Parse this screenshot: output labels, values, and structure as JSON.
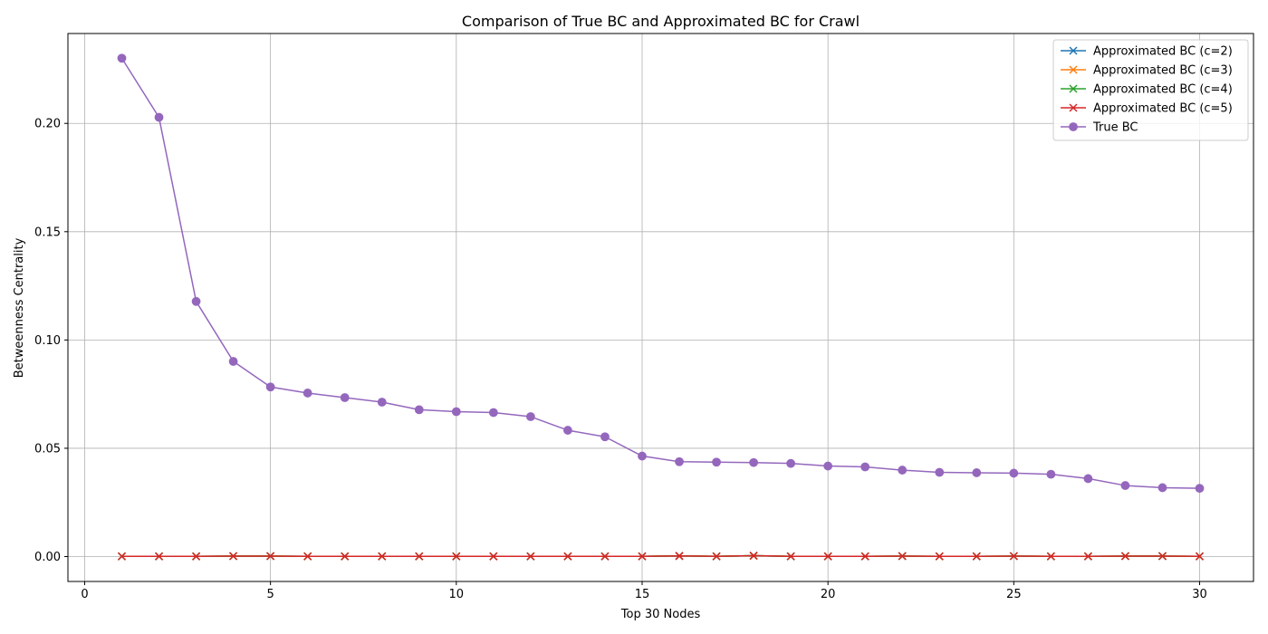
{
  "chart_data": {
    "type": "line",
    "title": "Comparison of True BC and Approximated BC for Crawl",
    "xlabel": "Top 30 Nodes",
    "ylabel": "Betweenness Centrality",
    "xlim": [
      -0.45,
      31.45
    ],
    "ylim": [
      -0.0115,
      0.2415
    ],
    "xticks": [
      0,
      5,
      10,
      15,
      20,
      25,
      30
    ],
    "yticks": [
      0.0,
      0.05,
      0.1,
      0.15,
      0.2
    ],
    "ytick_labels": [
      "0.00",
      "0.05",
      "0.10",
      "0.15",
      "0.20"
    ],
    "grid": true,
    "legend_position": "top-right",
    "x": [
      1,
      2,
      3,
      4,
      5,
      6,
      7,
      8,
      9,
      10,
      11,
      12,
      13,
      14,
      15,
      16,
      17,
      18,
      19,
      20,
      21,
      22,
      23,
      24,
      25,
      26,
      27,
      28,
      29,
      30
    ],
    "series": [
      {
        "name": "Approximated BC (c=2)",
        "color": "#1f77b4",
        "marker": "x",
        "values": [
          0.0001,
          0.0001,
          0.0001,
          0.0002,
          0.0002,
          0.0001,
          0.0001,
          0.0001,
          0.0001,
          0.0001,
          0.0001,
          0.0001,
          0.0001,
          0.0001,
          0.0001,
          0.0003,
          0.0001,
          0.0004,
          0.0001,
          0.0001,
          0.0001,
          0.0002,
          0.0001,
          0.0001,
          0.0002,
          0.0001,
          0.0001,
          0.0002,
          0.0002,
          0.0001
        ]
      },
      {
        "name": "Approximated BC (c=3)",
        "color": "#ff7f0e",
        "marker": "x",
        "values": [
          0.0001,
          0.0001,
          0.0001,
          0.0002,
          0.0002,
          0.0001,
          0.0001,
          0.0001,
          0.0001,
          0.0001,
          0.0001,
          0.0001,
          0.0001,
          0.0001,
          0.0001,
          0.0003,
          0.0001,
          0.0004,
          0.0001,
          0.0001,
          0.0001,
          0.0002,
          0.0001,
          0.0001,
          0.0002,
          0.0001,
          0.0001,
          0.0002,
          0.0002,
          0.0001
        ]
      },
      {
        "name": "Approximated BC (c=4)",
        "color": "#2ca02c",
        "marker": "x",
        "values": [
          0.0001,
          0.0001,
          0.0001,
          0.0002,
          0.0002,
          0.0001,
          0.0001,
          0.0001,
          0.0001,
          0.0001,
          0.0001,
          0.0001,
          0.0001,
          0.0001,
          0.0001,
          0.0003,
          0.0001,
          0.0004,
          0.0001,
          0.0001,
          0.0001,
          0.0002,
          0.0001,
          0.0001,
          0.0002,
          0.0001,
          0.0001,
          0.0002,
          0.0002,
          0.0001
        ]
      },
      {
        "name": "Approximated BC (c=5)",
        "color": "#d62728",
        "marker": "x",
        "values": [
          0.0001,
          0.0001,
          0.0001,
          0.0002,
          0.0002,
          0.0001,
          0.0001,
          0.0001,
          0.0001,
          0.0001,
          0.0001,
          0.0001,
          0.0001,
          0.0001,
          0.0001,
          0.0003,
          0.0001,
          0.0004,
          0.0001,
          0.0001,
          0.0001,
          0.0002,
          0.0001,
          0.0001,
          0.0002,
          0.0001,
          0.0001,
          0.0002,
          0.0002,
          0.0001
        ]
      },
      {
        "name": "True BC",
        "color": "#9467bd",
        "marker": "o",
        "values": [
          0.2301,
          0.2028,
          0.1178,
          0.0901,
          0.0783,
          0.0755,
          0.0734,
          0.0713,
          0.0678,
          0.0669,
          0.0665,
          0.0646,
          0.0583,
          0.0553,
          0.0464,
          0.0438,
          0.0436,
          0.0434,
          0.043,
          0.0418,
          0.0414,
          0.0399,
          0.0389,
          0.0387,
          0.0385,
          0.038,
          0.036,
          0.0328,
          0.0318,
          0.0315
        ]
      }
    ]
  }
}
